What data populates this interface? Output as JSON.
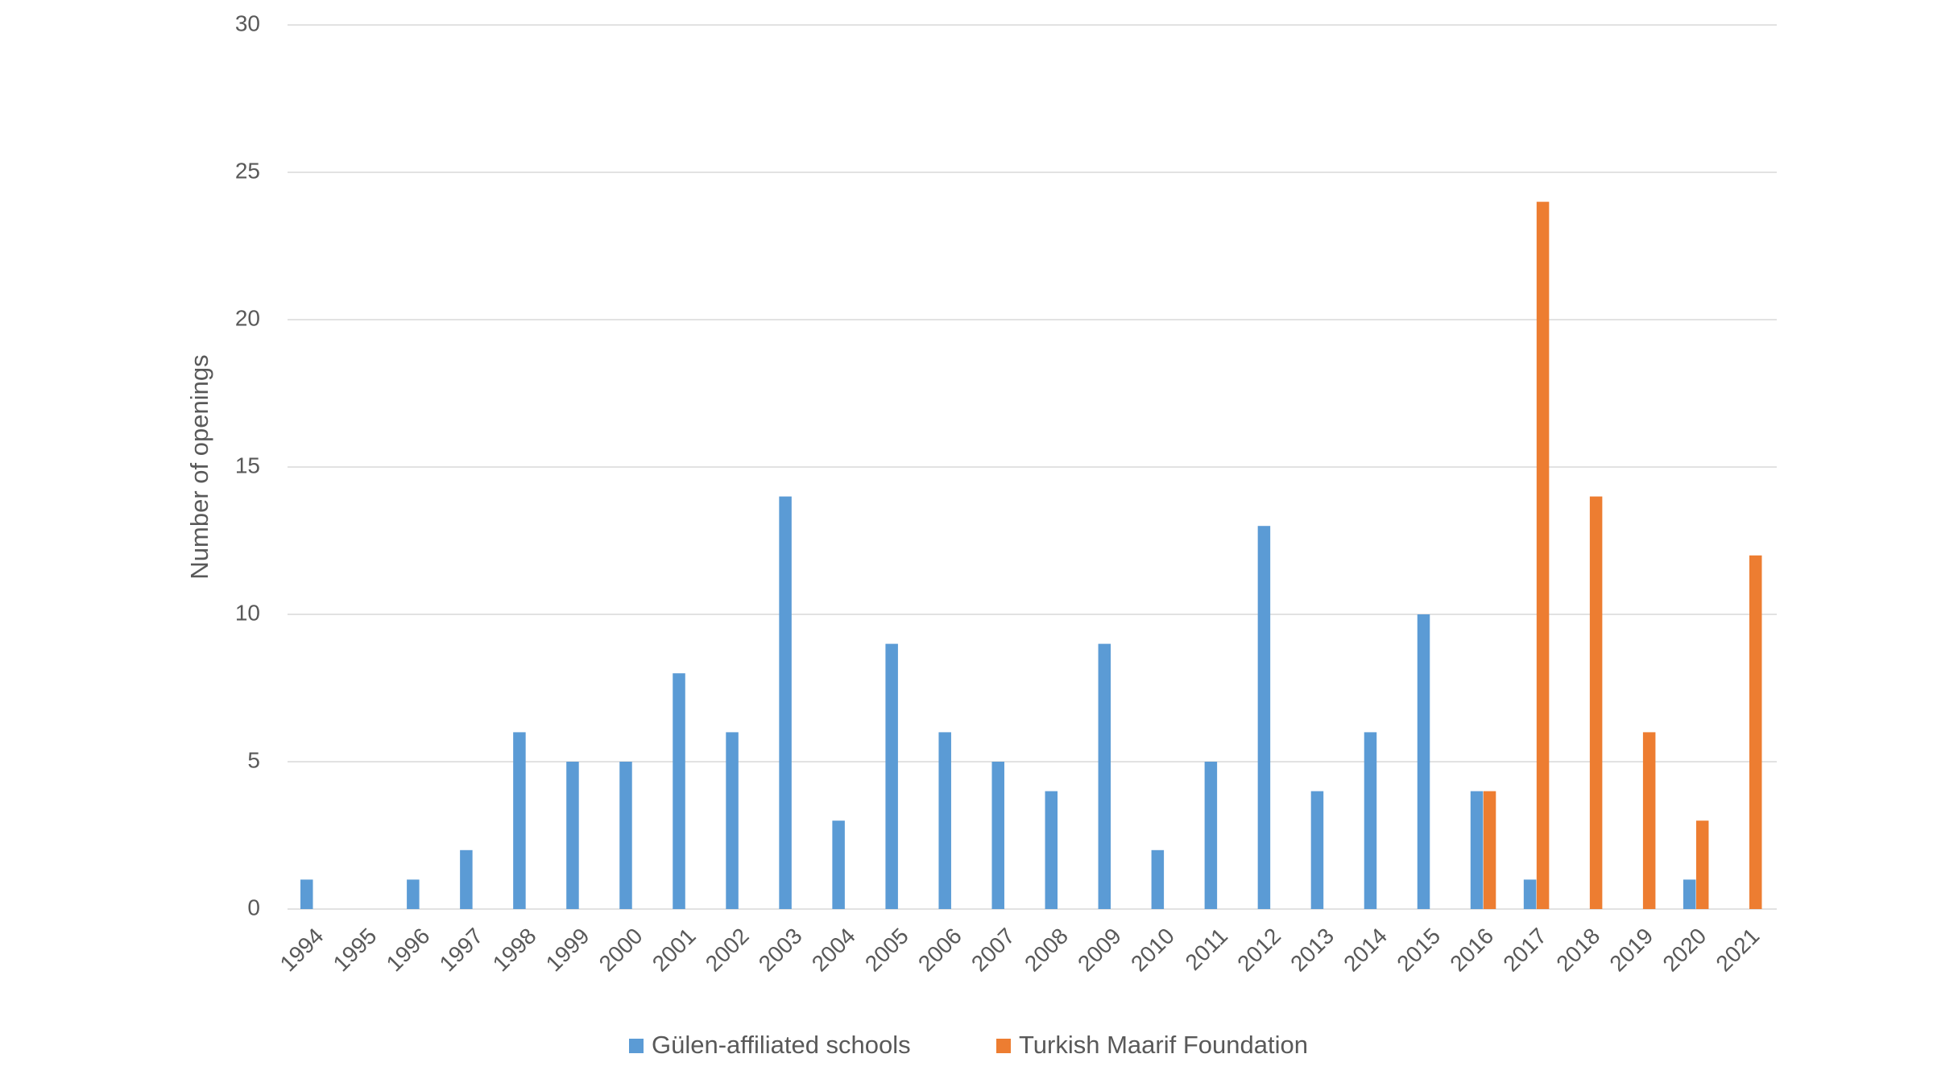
{
  "chart_data": {
    "type": "bar",
    "y_label": "Number of openings",
    "categories": [
      "1994",
      "1995",
      "1996",
      "1997",
      "1998",
      "1999",
      "2000",
      "2001",
      "2002",
      "2003",
      "2004",
      "2005",
      "2006",
      "2007",
      "2008",
      "2009",
      "2010",
      "2011",
      "2012",
      "2013",
      "2014",
      "2015",
      "2016",
      "2017",
      "2018",
      "2019",
      "2020",
      "2021"
    ],
    "series": [
      {
        "name": "Gülen-affiliated schools",
        "color": "#5b9bd5",
        "values": [
          1,
          0,
          1,
          2,
          6,
          5,
          5,
          8,
          6,
          14,
          3,
          9,
          6,
          5,
          4,
          9,
          2,
          5,
          13,
          4,
          6,
          10,
          4,
          1,
          0,
          0,
          1,
          0
        ]
      },
      {
        "name": "Turkish Maarif Foundation",
        "color": "#ed7d31",
        "values": [
          0,
          0,
          0,
          0,
          0,
          0,
          0,
          0,
          0,
          0,
          0,
          0,
          0,
          0,
          0,
          0,
          0,
          0,
          0,
          0,
          0,
          0,
          4,
          24,
          14,
          6,
          3,
          12
        ]
      }
    ],
    "ylim": [
      0,
      30
    ],
    "yticks": [
      0,
      5,
      10,
      15,
      20,
      25,
      30
    ],
    "grid": true,
    "legend": "bottom"
  }
}
